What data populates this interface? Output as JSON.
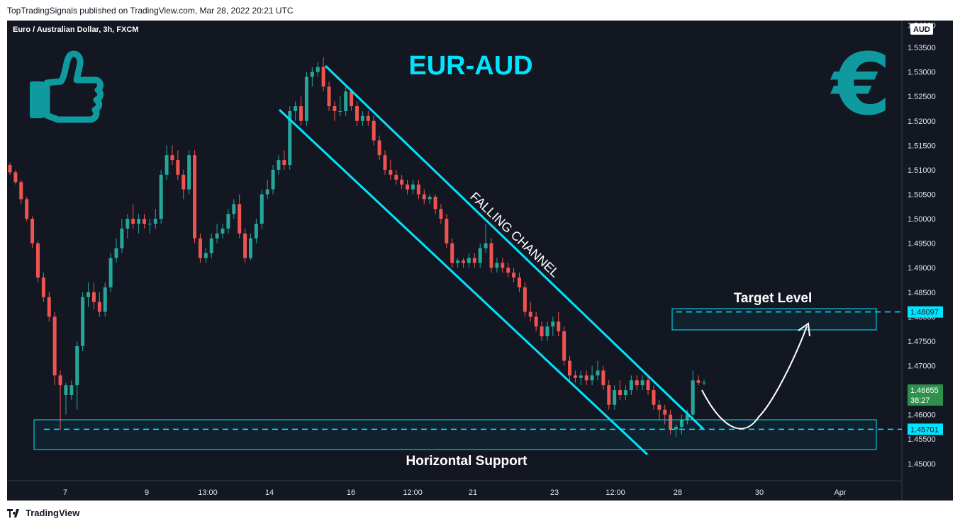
{
  "header": {
    "published": "TopTradingSignals published on TradingView.com, Mar 28, 2022 20:21 UTC"
  },
  "legend": {
    "symbol": "Euro / Australian Dollar, 3h, FXCM"
  },
  "footer": {
    "logo_icon": "tradingview-logo-icon",
    "brand": "TradingView"
  },
  "chart_data": {
    "type": "candlestick",
    "title": "EUR-AUD",
    "currency": "AUD",
    "y_ticks": [
      "1.53500",
      "1.53000",
      "1.52500",
      "1.52000",
      "1.51500",
      "1.51000",
      "1.50500",
      "1.50000",
      "1.49500",
      "1.49000",
      "1.48500",
      "1.48000",
      "1.47500",
      "1.47000",
      "1.46500",
      "1.46000",
      "1.45500",
      "1.45000"
    ],
    "y_top_partial": "1.54000",
    "x_ticks": [
      "7",
      "9",
      "13:00",
      "14",
      "16",
      "12:00",
      "21",
      "23",
      "12:00",
      "28",
      "30",
      "Apr"
    ],
    "ylim": [
      1.4465,
      1.5405
    ],
    "colors": {
      "up": "#26a69a",
      "down": "#ef5350",
      "background": "#131722",
      "annotation": "#00e5ff",
      "icon": "#0f9aa0",
      "text": "#e0e3eb",
      "current_price_bg": "#26a69a"
    },
    "candles": [
      [
        1.511,
        1.5115,
        1.509,
        1.5095
      ],
      [
        1.5095,
        1.51,
        1.507,
        1.5075
      ],
      [
        1.5075,
        1.508,
        1.503,
        1.504
      ],
      [
        1.504,
        1.5045,
        1.4995,
        1.5
      ],
      [
        1.5,
        1.5005,
        1.494,
        1.495
      ],
      [
        1.495,
        1.4955,
        1.487,
        1.488
      ],
      [
        1.488,
        1.489,
        1.483,
        1.484
      ],
      [
        1.484,
        1.485,
        1.479,
        1.48
      ],
      [
        1.48,
        1.481,
        1.466,
        1.468
      ],
      [
        1.468,
        1.469,
        1.457,
        1.466
      ],
      [
        1.464,
        1.4665,
        1.46,
        1.466
      ],
      [
        1.464,
        1.467,
        1.463,
        1.466
      ],
      [
        1.466,
        1.475,
        1.461,
        1.474
      ],
      [
        1.474,
        1.485,
        1.473,
        1.484
      ],
      [
        1.484,
        1.487,
        1.482,
        1.485
      ],
      [
        1.485,
        1.487,
        1.4815,
        1.483
      ],
      [
        1.483,
        1.485,
        1.48,
        1.481
      ],
      [
        1.481,
        1.487,
        1.48,
        1.486
      ],
      [
        1.486,
        1.493,
        1.485,
        1.492
      ],
      [
        1.492,
        1.496,
        1.491,
        1.494
      ],
      [
        1.494,
        1.5,
        1.493,
        1.498
      ],
      [
        1.498,
        1.501,
        1.496,
        1.5
      ],
      [
        1.5,
        1.503,
        1.498,
        1.499
      ],
      [
        1.499,
        1.501,
        1.497,
        1.5
      ],
      [
        1.5,
        1.501,
        1.498,
        1.499
      ],
      [
        1.499,
        1.5,
        1.497,
        1.499
      ],
      [
        1.499,
        1.502,
        1.498,
        1.5
      ],
      [
        1.5,
        1.51,
        1.499,
        1.509
      ],
      [
        1.509,
        1.515,
        1.508,
        1.513
      ],
      [
        1.513,
        1.515,
        1.511,
        1.512
      ],
      [
        1.512,
        1.514,
        1.508,
        1.509
      ],
      [
        1.509,
        1.51,
        1.504,
        1.506
      ],
      [
        1.506,
        1.514,
        1.505,
        1.513
      ],
      [
        1.513,
        1.514,
        1.495,
        1.496
      ],
      [
        1.496,
        1.497,
        1.491,
        1.492
      ],
      [
        1.492,
        1.494,
        1.491,
        1.493
      ],
      [
        1.493,
        1.497,
        1.492,
        1.496
      ],
      [
        1.496,
        1.499,
        1.495,
        1.497
      ],
      [
        1.497,
        1.499,
        1.496,
        1.498
      ],
      [
        1.498,
        1.502,
        1.497,
        1.501
      ],
      [
        1.501,
        1.504,
        1.5,
        1.503
      ],
      [
        1.503,
        1.505,
        1.496,
        1.497
      ],
      [
        1.497,
        1.498,
        1.491,
        1.492
      ],
      [
        1.492,
        1.497,
        1.4915,
        1.496
      ],
      [
        1.496,
        1.5,
        1.495,
        1.499
      ],
      [
        1.499,
        1.506,
        1.498,
        1.505
      ],
      [
        1.505,
        1.508,
        1.504,
        1.506
      ],
      [
        1.506,
        1.511,
        1.505,
        1.51
      ],
      [
        1.51,
        1.513,
        1.509,
        1.512
      ],
      [
        1.512,
        1.514,
        1.51,
        1.511
      ],
      [
        1.511,
        1.523,
        1.51,
        1.522
      ],
      [
        1.522,
        1.524,
        1.52,
        1.523
      ],
      [
        1.523,
        1.525,
        1.519,
        1.52
      ],
      [
        1.52,
        1.53,
        1.519,
        1.529
      ],
      [
        1.529,
        1.531,
        1.527,
        1.53
      ],
      [
        1.53,
        1.532,
        1.529,
        1.531
      ],
      [
        1.531,
        1.533,
        1.526,
        1.527
      ],
      [
        1.527,
        1.528,
        1.522,
        1.523
      ],
      [
        1.523,
        1.524,
        1.52,
        1.522
      ],
      [
        1.522,
        1.525,
        1.521,
        1.522
      ],
      [
        1.522,
        1.527,
        1.521,
        1.526
      ],
      [
        1.526,
        1.5265,
        1.522,
        1.523
      ],
      [
        1.523,
        1.524,
        1.519,
        1.52
      ],
      [
        1.52,
        1.522,
        1.519,
        1.521
      ],
      [
        1.521,
        1.522,
        1.519,
        1.52
      ],
      [
        1.52,
        1.521,
        1.515,
        1.516
      ],
      [
        1.516,
        1.517,
        1.512,
        1.513
      ],
      [
        1.513,
        1.514,
        1.509,
        1.51
      ],
      [
        1.51,
        1.512,
        1.508,
        1.509
      ],
      [
        1.509,
        1.51,
        1.507,
        1.508
      ],
      [
        1.508,
        1.509,
        1.506,
        1.507
      ],
      [
        1.507,
        1.508,
        1.505,
        1.506
      ],
      [
        1.506,
        1.508,
        1.505,
        1.507
      ],
      [
        1.507,
        1.508,
        1.504,
        1.505
      ],
      [
        1.505,
        1.506,
        1.503,
        1.504
      ],
      [
        1.504,
        1.505,
        1.503,
        1.5045
      ],
      [
        1.5045,
        1.505,
        1.501,
        1.502
      ],
      [
        1.502,
        1.503,
        1.499,
        1.5
      ],
      [
        1.5,
        1.501,
        1.494,
        1.495
      ],
      [
        1.495,
        1.496,
        1.49,
        1.491
      ],
      [
        1.491,
        1.492,
        1.49,
        1.4915
      ],
      [
        1.4915,
        1.492,
        1.49,
        1.491
      ],
      [
        1.491,
        1.493,
        1.49,
        1.492
      ],
      [
        1.492,
        1.493,
        1.49,
        1.491
      ],
      [
        1.491,
        1.495,
        1.49,
        1.494
      ],
      [
        1.494,
        1.499,
        1.493,
        1.495
      ],
      [
        1.495,
        1.496,
        1.489,
        1.49
      ],
      [
        1.49,
        1.492,
        1.489,
        1.491
      ],
      [
        1.491,
        1.492,
        1.489,
        1.49
      ],
      [
        1.49,
        1.491,
        1.488,
        1.489
      ],
      [
        1.489,
        1.49,
        1.487,
        1.488
      ],
      [
        1.488,
        1.489,
        1.485,
        1.486
      ],
      [
        1.486,
        1.487,
        1.48,
        1.481
      ],
      [
        1.481,
        1.483,
        1.479,
        1.48
      ],
      [
        1.48,
        1.481,
        1.477,
        1.478
      ],
      [
        1.478,
        1.479,
        1.475,
        1.476
      ],
      [
        1.476,
        1.479,
        1.475,
        1.478
      ],
      [
        1.478,
        1.48,
        1.476,
        1.479
      ],
      [
        1.479,
        1.481,
        1.476,
        1.477
      ],
      [
        1.477,
        1.478,
        1.47,
        1.471
      ],
      [
        1.471,
        1.472,
        1.467,
        1.468
      ],
      [
        1.468,
        1.469,
        1.4665,
        1.4675
      ],
      [
        1.4675,
        1.469,
        1.466,
        1.468
      ],
      [
        1.468,
        1.469,
        1.466,
        1.467
      ],
      [
        1.467,
        1.47,
        1.466,
        1.468
      ],
      [
        1.468,
        1.471,
        1.467,
        1.469
      ],
      [
        1.469,
        1.47,
        1.465,
        1.466
      ],
      [
        1.466,
        1.467,
        1.461,
        1.462
      ],
      [
        1.462,
        1.466,
        1.461,
        1.465
      ],
      [
        1.465,
        1.467,
        1.463,
        1.464
      ],
      [
        1.464,
        1.466,
        1.463,
        1.465
      ],
      [
        1.465,
        1.468,
        1.464,
        1.467
      ],
      [
        1.467,
        1.468,
        1.465,
        1.466
      ],
      [
        1.466,
        1.468,
        1.465,
        1.467
      ],
      [
        1.467,
        1.468,
        1.464,
        1.465
      ],
      [
        1.465,
        1.466,
        1.461,
        1.462
      ],
      [
        1.462,
        1.463,
        1.459,
        1.461
      ],
      [
        1.461,
        1.462,
        1.458,
        1.46
      ],
      [
        1.46,
        1.461,
        1.456,
        1.457
      ],
      [
        1.457,
        1.458,
        1.4555,
        1.4575
      ],
      [
        1.4575,
        1.46,
        1.456,
        1.459
      ],
      [
        1.459,
        1.461,
        1.458,
        1.46
      ],
      [
        1.46,
        1.469,
        1.459,
        1.467
      ],
      [
        1.467,
        1.468,
        1.466,
        1.4665
      ],
      [
        1.4665,
        1.4672,
        1.466,
        1.46655
      ]
    ],
    "channel_label": "FALLING CHANNEL",
    "support_label": "Horizontal Support",
    "support_level": 1.45701,
    "target_label": "Target Level",
    "target_level": 1.48097,
    "current_price": "1.46655",
    "countdown": "38:27",
    "support_price_label": "1.45701",
    "target_price_label": "1.48097"
  }
}
